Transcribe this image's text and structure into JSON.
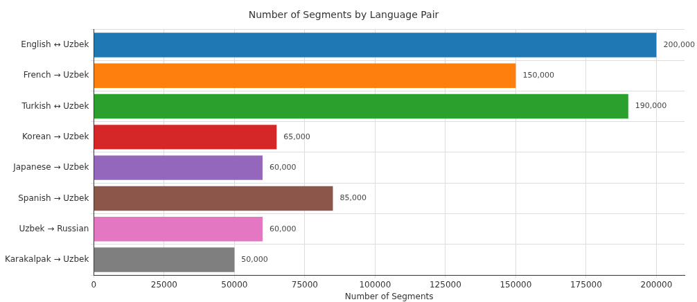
{
  "chart_data": {
    "type": "bar",
    "orientation": "horizontal",
    "title": "Number of Segments by Language Pair",
    "xlabel": "Number of Segments",
    "categories": [
      "English ↔ Uzbek",
      "French → Uzbek",
      "Turkish ↔ Uzbek",
      "Korean → Uzbek",
      "Japanese → Uzbek",
      "Spanish → Uzbek",
      "Uzbek → Russian",
      "Karakalpak → Uzbek"
    ],
    "values": [
      200000,
      150000,
      190000,
      65000,
      60000,
      85000,
      60000,
      50000
    ],
    "colors": [
      "#1f77b4",
      "#ff7f0e",
      "#2ca02c",
      "#d62728",
      "#9467bd",
      "#8c564b",
      "#e377c2",
      "#7f7f7f"
    ],
    "value_labels": [
      "200,000",
      "150,000",
      "190,000",
      "65,000",
      "60,000",
      "85,000",
      "60,000",
      "50,000"
    ],
    "xlim": [
      0,
      210000
    ],
    "xticks": [
      0,
      25000,
      50000,
      75000,
      100000,
      125000,
      150000,
      175000,
      200000
    ],
    "grid": true
  }
}
